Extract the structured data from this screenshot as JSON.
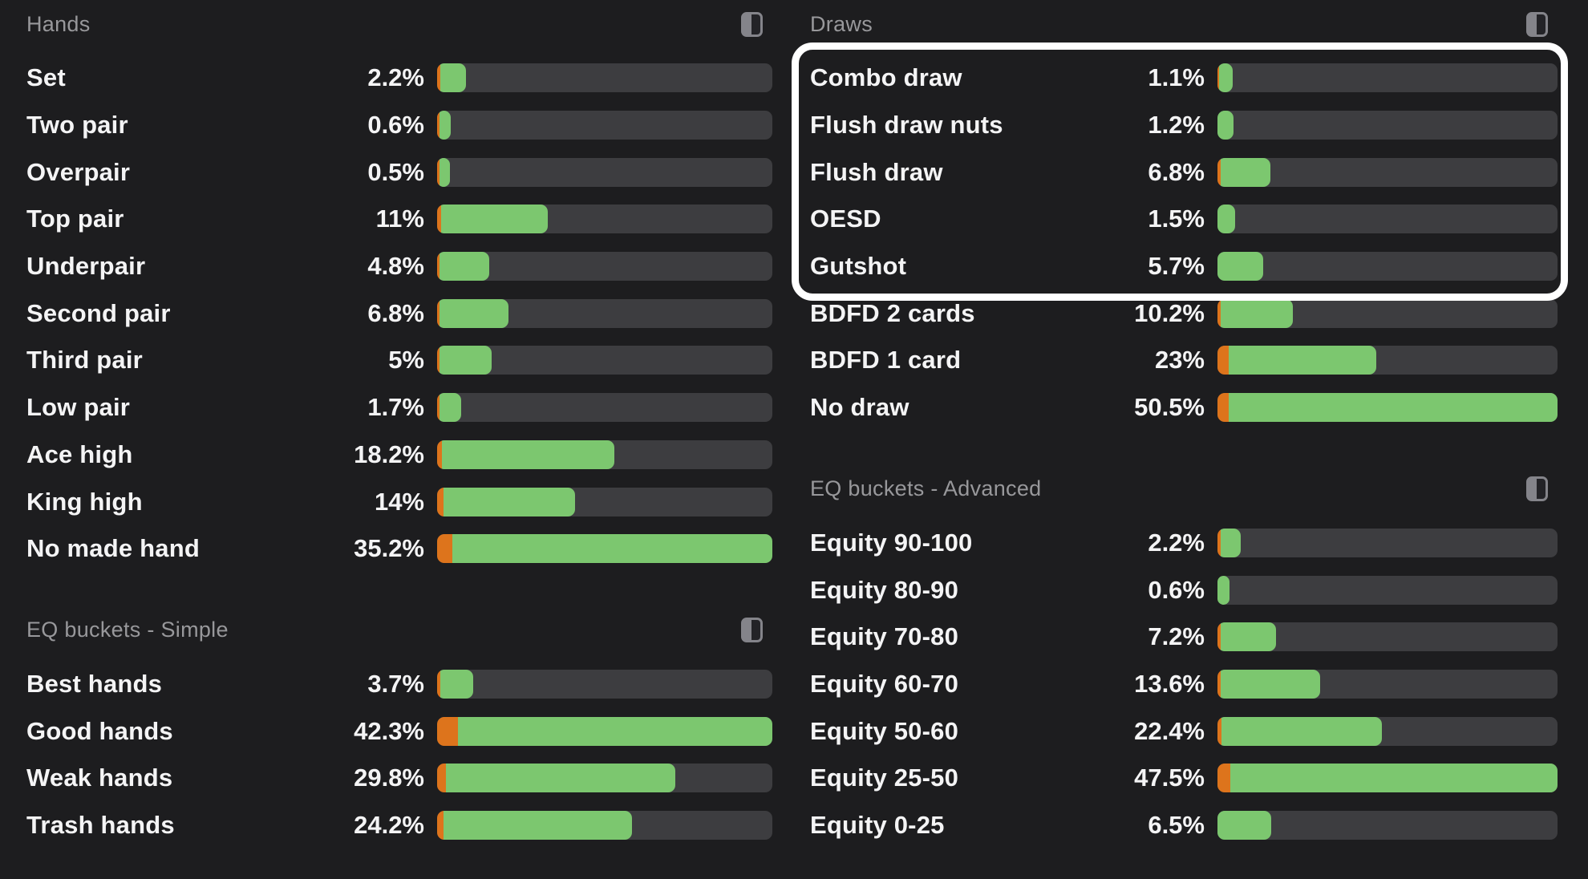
{
  "colors": {
    "background": "#1d1d1f",
    "bar_track": "#3d3d40",
    "bar_green": "#7cc76f",
    "bar_orange": "#dd741c",
    "label_text": "#f4f4f5",
    "header_text": "#98989b",
    "highlight_border": "#ffffff"
  },
  "highlight": {
    "color": "#ffffff",
    "section": "Draws",
    "rows_enclosed": [
      "Combo draw",
      "Flush draw nuts",
      "Flush draw",
      "OESD",
      "Gutshot"
    ]
  },
  "sections": [
    {
      "id": "hands",
      "column": "left",
      "title": "Hands",
      "icon": "split-view-icon",
      "rows": [
        {
          "label": "Set",
          "value": "2.2%",
          "fill_pct": 6.3,
          "orange_pct": 1.0
        },
        {
          "label": "Two pair",
          "value": "0.6%",
          "fill_pct": 1.7,
          "orange_pct": 0.8
        },
        {
          "label": "Overpair",
          "value": "0.5%",
          "fill_pct": 1.4,
          "orange_pct": 0.8
        },
        {
          "label": "Top pair",
          "value": "11%",
          "fill_pct": 31.3,
          "orange_pct": 1.3
        },
        {
          "label": "Underpair",
          "value": "4.8%",
          "fill_pct": 13.6,
          "orange_pct": 0.8
        },
        {
          "label": "Second pair",
          "value": "6.8%",
          "fill_pct": 19.3,
          "orange_pct": 0.8
        },
        {
          "label": "Third pair",
          "value": "5%",
          "fill_pct": 14.2,
          "orange_pct": 0.8
        },
        {
          "label": "Low pair",
          "value": "1.7%",
          "fill_pct": 4.8,
          "orange_pct": 0.6
        },
        {
          "label": "Ace high",
          "value": "18.2%",
          "fill_pct": 51.7,
          "orange_pct": 1.5
        },
        {
          "label": "King high",
          "value": "14%",
          "fill_pct": 39.8,
          "orange_pct": 1.8
        },
        {
          "label": "No made hand",
          "value": "35.2%",
          "fill_pct": 100,
          "orange_pct": 4.5
        }
      ]
    },
    {
      "id": "eq-simple",
      "column": "left",
      "title": "EQ buckets - Simple",
      "icon": "split-view-icon",
      "rows": [
        {
          "label": "Best hands",
          "value": "3.7%",
          "fill_pct": 8.7,
          "orange_pct": 1.0
        },
        {
          "label": "Good hands",
          "value": "42.3%",
          "fill_pct": 100,
          "orange_pct": 6.3
        },
        {
          "label": "Weak hands",
          "value": "29.8%",
          "fill_pct": 70.4,
          "orange_pct": 2.6
        },
        {
          "label": "Trash hands",
          "value": "24.2%",
          "fill_pct": 57.2,
          "orange_pct": 2.0
        }
      ]
    },
    {
      "id": "draws",
      "column": "right",
      "title": "Draws",
      "icon": "split-view-icon",
      "rows": [
        {
          "label": "Combo draw",
          "value": "1.1%",
          "fill_pct": 2.2,
          "orange_pct": 0.5
        },
        {
          "label": "Flush draw nuts",
          "value": "1.2%",
          "fill_pct": 2.4,
          "orange_pct": 0
        },
        {
          "label": "Flush draw",
          "value": "6.8%",
          "fill_pct": 13.5,
          "orange_pct": 0.9
        },
        {
          "label": "OESD",
          "value": "1.5%",
          "fill_pct": 3.0,
          "orange_pct": 0
        },
        {
          "label": "Gutshot",
          "value": "5.7%",
          "fill_pct": 11.3,
          "orange_pct": 0
        },
        {
          "label": "BDFD 2 cards",
          "value": "10.2%",
          "fill_pct": 20.2,
          "orange_pct": 1.0
        },
        {
          "label": "BDFD 1 card",
          "value": "23%",
          "fill_pct": 45.5,
          "orange_pct": 3.4
        },
        {
          "label": "No draw",
          "value": "50.5%",
          "fill_pct": 100,
          "orange_pct": 3.2
        }
      ]
    },
    {
      "id": "eq-advanced",
      "column": "right",
      "title": "EQ buckets - Advanced",
      "icon": "split-view-icon",
      "rows": [
        {
          "label": "Equity 90-100",
          "value": "2.2%",
          "fill_pct": 4.6,
          "orange_pct": 0.9
        },
        {
          "label": "Equity 80-90",
          "value": "0.6%",
          "fill_pct": 1.3,
          "orange_pct": 0
        },
        {
          "label": "Equity 70-80",
          "value": "7.2%",
          "fill_pct": 15.2,
          "orange_pct": 0.9
        },
        {
          "label": "Equity 60-70",
          "value": "13.6%",
          "fill_pct": 28.6,
          "orange_pct": 1.0
        },
        {
          "label": "Equity 50-60",
          "value": "22.4%",
          "fill_pct": 47.2,
          "orange_pct": 1.2
        },
        {
          "label": "Equity 25-50",
          "value": "47.5%",
          "fill_pct": 100,
          "orange_pct": 3.8
        },
        {
          "label": "Equity 0-25",
          "value": "6.5%",
          "fill_pct": 13.7,
          "orange_pct": 0
        }
      ]
    }
  ]
}
